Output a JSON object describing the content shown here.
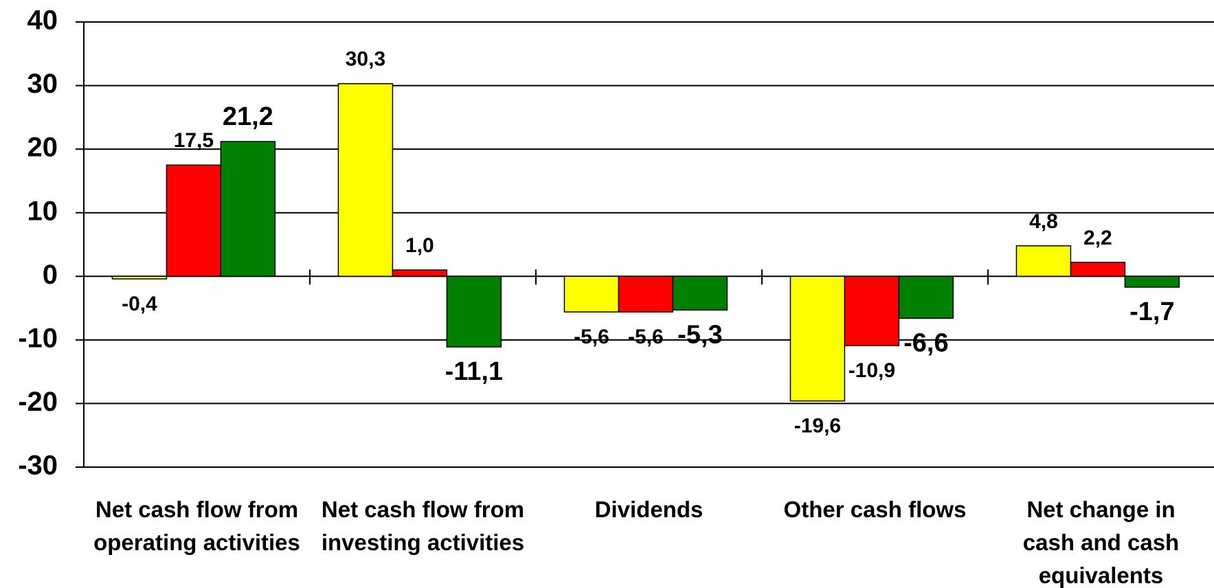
{
  "chart_data": {
    "type": "bar",
    "categories": [
      "Net cash flow from\noperating activities",
      "Net cash flow from\ninvesting activities",
      "Dividends",
      "Other cash flows",
      "Net change in\ncash and cash\nequivalents"
    ],
    "series": [
      {
        "color": "#ffff00",
        "values": [
          -0.4,
          30.3,
          -5.6,
          -19.6,
          4.8
        ],
        "value_labels": [
          "-0,4",
          "30,3",
          "-5,6",
          "-19,6",
          "4,8"
        ]
      },
      {
        "color": "#ff0000",
        "values": [
          17.5,
          1.0,
          -5.6,
          -10.9,
          2.2
        ],
        "value_labels": [
          "17,5",
          "1,0",
          "-5,6",
          "-10,9",
          "2,2"
        ]
      },
      {
        "color": "#008000",
        "values": [
          21.2,
          -11.1,
          -5.3,
          -6.6,
          -1.7
        ],
        "value_labels": [
          "21,2",
          "-11,1",
          "-5,3",
          "-6,6",
          "-1,7"
        ]
      }
    ],
    "ylim": [
      -30,
      40
    ],
    "yticks": [
      -30,
      -20,
      -10,
      0,
      10,
      20,
      30,
      40
    ],
    "grid": true
  }
}
